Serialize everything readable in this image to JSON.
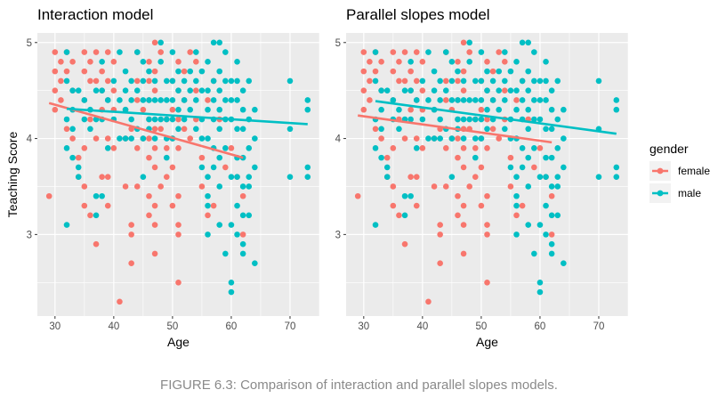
{
  "caption": "FIGURE 6.3: Comparison of interaction and parallel slopes models.",
  "colors": {
    "female": "#F8766D",
    "male": "#00BFC4",
    "panel_bg": "#EBEBEB",
    "grid": "#ffffff"
  },
  "legend": {
    "title": "gender",
    "items": [
      "female",
      "male"
    ]
  },
  "chart_data": [
    {
      "type": "scatter",
      "title": "Interaction model",
      "xlabel": "Age",
      "ylabel": "Teaching Score",
      "xlim": [
        27,
        75
      ],
      "ylim": [
        2.15,
        5.1
      ],
      "xticks": [
        30,
        40,
        50,
        60,
        70
      ],
      "yticks": [
        3,
        4,
        5
      ],
      "grid": true,
      "lines": [
        {
          "name": "female",
          "x": [
            29,
            62
          ],
          "y": [
            4.37,
            3.8
          ]
        },
        {
          "name": "male",
          "x": [
            32,
            73
          ],
          "y": [
            4.31,
            4.15
          ]
        }
      ]
    },
    {
      "type": "scatter",
      "title": "Parallel slopes model",
      "xlabel": "Age",
      "ylabel": "",
      "xlim": [
        27,
        75
      ],
      "ylim": [
        2.15,
        5.1
      ],
      "xticks": [
        30,
        40,
        50,
        60,
        70
      ],
      "yticks": [
        3,
        4,
        5
      ],
      "grid": true,
      "lines": [
        {
          "name": "female",
          "x": [
            29,
            62
          ],
          "y": [
            4.24,
            3.96
          ]
        },
        {
          "name": "male",
          "x": [
            32,
            73
          ],
          "y": [
            4.39,
            4.05
          ]
        }
      ]
    }
  ],
  "points": {
    "female": [
      [
        29,
        3.4
      ],
      [
        30,
        4.9
      ],
      [
        30,
        4.7
      ],
      [
        30,
        4.5
      ],
      [
        30,
        4.3
      ],
      [
        31,
        4.8
      ],
      [
        31,
        4.6
      ],
      [
        31,
        4.4
      ],
      [
        32,
        4.9
      ],
      [
        32,
        4.7
      ],
      [
        32,
        4.1
      ],
      [
        33,
        4.8
      ],
      [
        33,
        4.5
      ],
      [
        33,
        4.0
      ],
      [
        34,
        3.8
      ],
      [
        34,
        3.6
      ],
      [
        35,
        4.9
      ],
      [
        35,
        4.7
      ],
      [
        35,
        4.4
      ],
      [
        35,
        3.9
      ],
      [
        35,
        3.5
      ],
      [
        35,
        3.3
      ],
      [
        36,
        4.8
      ],
      [
        36,
        4.6
      ],
      [
        36,
        4.2
      ],
      [
        36,
        3.2
      ],
      [
        37,
        4.9
      ],
      [
        37,
        4.6
      ],
      [
        37,
        4.0
      ],
      [
        37,
        2.9
      ],
      [
        38,
        4.7
      ],
      [
        38,
        4.5
      ],
      [
        38,
        4.3
      ],
      [
        38,
        3.6
      ],
      [
        39,
        4.9
      ],
      [
        39,
        4.6
      ],
      [
        39,
        4.4
      ],
      [
        39,
        4.0
      ],
      [
        39,
        3.6
      ],
      [
        39,
        3.3
      ],
      [
        40,
        4.8
      ],
      [
        40,
        4.5
      ],
      [
        40,
        4.3
      ],
      [
        40,
        3.9
      ],
      [
        41,
        2.3
      ],
      [
        42,
        4.3
      ],
      [
        42,
        4.0
      ],
      [
        42,
        3.5
      ],
      [
        43,
        4.1
      ],
      [
        43,
        3.1
      ],
      [
        43,
        2.7
      ],
      [
        43,
        3.0
      ],
      [
        44,
        4.9
      ],
      [
        44,
        4.6
      ],
      [
        44,
        4.4
      ],
      [
        44,
        3.9
      ],
      [
        44,
        3.5
      ],
      [
        45,
        4.3
      ],
      [
        45,
        4.0
      ],
      [
        46,
        4.8
      ],
      [
        46,
        4.6
      ],
      [
        46,
        4.4
      ],
      [
        46,
        4.2
      ],
      [
        46,
        4.0
      ],
      [
        46,
        3.8
      ],
      [
        46,
        3.4
      ],
      [
        46,
        3.2
      ],
      [
        47,
        5.0
      ],
      [
        47,
        4.7
      ],
      [
        47,
        4.5
      ],
      [
        47,
        4.1
      ],
      [
        47,
        3.9
      ],
      [
        47,
        3.7
      ],
      [
        47,
        3.3
      ],
      [
        47,
        3.1
      ],
      [
        47,
        2.8
      ],
      [
        48,
        4.9
      ],
      [
        48,
        4.1
      ],
      [
        48,
        3.5
      ],
      [
        49,
        4.2
      ],
      [
        49,
        3.9
      ],
      [
        49,
        3.6
      ],
      [
        50,
        4.6
      ],
      [
        50,
        4.3
      ],
      [
        50,
        4.0
      ],
      [
        50,
        3.7
      ],
      [
        50,
        3.3
      ],
      [
        51,
        4.8
      ],
      [
        51,
        4.5
      ],
      [
        51,
        4.2
      ],
      [
        51,
        3.9
      ],
      [
        51,
        3.4
      ],
      [
        51,
        3.1
      ],
      [
        51,
        3.0
      ],
      [
        51,
        2.5
      ],
      [
        52,
        4.7
      ],
      [
        52,
        4.4
      ],
      [
        52,
        4.1
      ],
      [
        53,
        4.9
      ],
      [
        53,
        4.0
      ],
      [
        54,
        4.8
      ],
      [
        54,
        4.5
      ],
      [
        54,
        4.2
      ],
      [
        55,
        3.8
      ],
      [
        55,
        3.5
      ],
      [
        56,
        4.4
      ],
      [
        56,
        3.2
      ],
      [
        57,
        4.6
      ],
      [
        57,
        3.3
      ],
      [
        58,
        4.2
      ],
      [
        59,
        3.7
      ],
      [
        60,
        3.9
      ],
      [
        61,
        3.6
      ],
      [
        62,
        3.4
      ],
      [
        62,
        3.0
      ]
    ],
    "male": [
      [
        32,
        4.9
      ],
      [
        32,
        4.6
      ],
      [
        32,
        4.2
      ],
      [
        32,
        3.9
      ],
      [
        32,
        3.1
      ],
      [
        33,
        4.5
      ],
      [
        33,
        4.3
      ],
      [
        33,
        4.1
      ],
      [
        33,
        3.8
      ],
      [
        34,
        4.5
      ],
      [
        34,
        3.7
      ],
      [
        34,
        3.6
      ],
      [
        35,
        4.4
      ],
      [
        35,
        4.2
      ],
      [
        36,
        4.3
      ],
      [
        36,
        4.1
      ],
      [
        37,
        4.5
      ],
      [
        37,
        4.2
      ],
      [
        37,
        3.4
      ],
      [
        37,
        3.2
      ],
      [
        38,
        4.8
      ],
      [
        38,
        4.5
      ],
      [
        38,
        4.2
      ],
      [
        38,
        3.4
      ],
      [
        39,
        4.4
      ],
      [
        39,
        3.9
      ],
      [
        40,
        4.6
      ],
      [
        40,
        4.2
      ],
      [
        41,
        4.9
      ],
      [
        41,
        4.4
      ],
      [
        41,
        4.0
      ],
      [
        42,
        4.7
      ],
      [
        42,
        4.5
      ],
      [
        42,
        4.3
      ],
      [
        42,
        4.0
      ],
      [
        43,
        4.6
      ],
      [
        43,
        4.4
      ],
      [
        43,
        4.2
      ],
      [
        43,
        4.0
      ],
      [
        44,
        4.9
      ],
      [
        44,
        4.5
      ],
      [
        44,
        4.1
      ],
      [
        45,
        4.8
      ],
      [
        45,
        4.6
      ],
      [
        45,
        4.4
      ],
      [
        45,
        4.0
      ],
      [
        45,
        3.6
      ],
      [
        46,
        4.7
      ],
      [
        46,
        4.4
      ],
      [
        46,
        4.2
      ],
      [
        46,
        4.1
      ],
      [
        47,
        4.6
      ],
      [
        47,
        4.4
      ],
      [
        47,
        4.2
      ],
      [
        47,
        4.0
      ],
      [
        48,
        5.0
      ],
      [
        48,
        4.8
      ],
      [
        48,
        4.4
      ],
      [
        48,
        4.2
      ],
      [
        49,
        4.6
      ],
      [
        49,
        4.4
      ],
      [
        49,
        4.2
      ],
      [
        49,
        4.0
      ],
      [
        49,
        3.8
      ],
      [
        50,
        4.9
      ],
      [
        50,
        4.6
      ],
      [
        50,
        4.4
      ],
      [
        50,
        4.2
      ],
      [
        50,
        4.0
      ],
      [
        51,
        4.7
      ],
      [
        51,
        4.5
      ],
      [
        51,
        4.3
      ],
      [
        51,
        4.1
      ],
      [
        52,
        4.6
      ],
      [
        52,
        4.4
      ],
      [
        52,
        4.2
      ],
      [
        53,
        4.7
      ],
      [
        53,
        4.5
      ],
      [
        53,
        4.3
      ],
      [
        54,
        4.9
      ],
      [
        54,
        4.6
      ],
      [
        54,
        4.4
      ],
      [
        54,
        4.1
      ],
      [
        55,
        4.7
      ],
      [
        55,
        4.5
      ],
      [
        55,
        4.2
      ],
      [
        55,
        4.0
      ],
      [
        55,
        3.7
      ],
      [
        56,
        4.8
      ],
      [
        56,
        4.5
      ],
      [
        56,
        4.3
      ],
      [
        56,
        4.0
      ],
      [
        56,
        3.6
      ],
      [
        56,
        3.4
      ],
      [
        56,
        3.3
      ],
      [
        56,
        3.0
      ],
      [
        57,
        5.0
      ],
      [
        57,
        4.6
      ],
      [
        57,
        4.4
      ],
      [
        57,
        4.2
      ],
      [
        57,
        3.9
      ],
      [
        57,
        3.7
      ],
      [
        58,
        5.0
      ],
      [
        58,
        4.7
      ],
      [
        58,
        4.5
      ],
      [
        58,
        4.3
      ],
      [
        58,
        4.1
      ],
      [
        58,
        3.8
      ],
      [
        58,
        3.5
      ],
      [
        58,
        3.1
      ],
      [
        59,
        4.9
      ],
      [
        59,
        4.6
      ],
      [
        59,
        4.4
      ],
      [
        59,
        4.2
      ],
      [
        59,
        3.9
      ],
      [
        59,
        2.8
      ],
      [
        60,
        4.6
      ],
      [
        60,
        4.4
      ],
      [
        60,
        4.2
      ],
      [
        60,
        3.6
      ],
      [
        60,
        3.1
      ],
      [
        60,
        2.5
      ],
      [
        60,
        2.4
      ],
      [
        61,
        4.8
      ],
      [
        61,
        4.6
      ],
      [
        61,
        4.4
      ],
      [
        61,
        4.1
      ],
      [
        61,
        3.8
      ],
      [
        61,
        3.6
      ],
      [
        61,
        3.3
      ],
      [
        61,
        3.0
      ],
      [
        62,
        4.5
      ],
      [
        62,
        4.3
      ],
      [
        62,
        4.1
      ],
      [
        62,
        3.8
      ],
      [
        62,
        3.5
      ],
      [
        62,
        3.2
      ],
      [
        62,
        2.9
      ],
      [
        62,
        2.8
      ],
      [
        63,
        4.6
      ],
      [
        63,
        4.2
      ],
      [
        63,
        3.9
      ],
      [
        63,
        3.6
      ],
      [
        63,
        3.5
      ],
      [
        63,
        3.2
      ],
      [
        64,
        4.3
      ],
      [
        64,
        4.0
      ],
      [
        64,
        3.7
      ],
      [
        64,
        2.7
      ],
      [
        70,
        4.6
      ],
      [
        70,
        4.1
      ],
      [
        70,
        3.6
      ],
      [
        73,
        4.4
      ],
      [
        73,
        4.3
      ],
      [
        73,
        3.7
      ],
      [
        73,
        3.6
      ]
    ]
  }
}
